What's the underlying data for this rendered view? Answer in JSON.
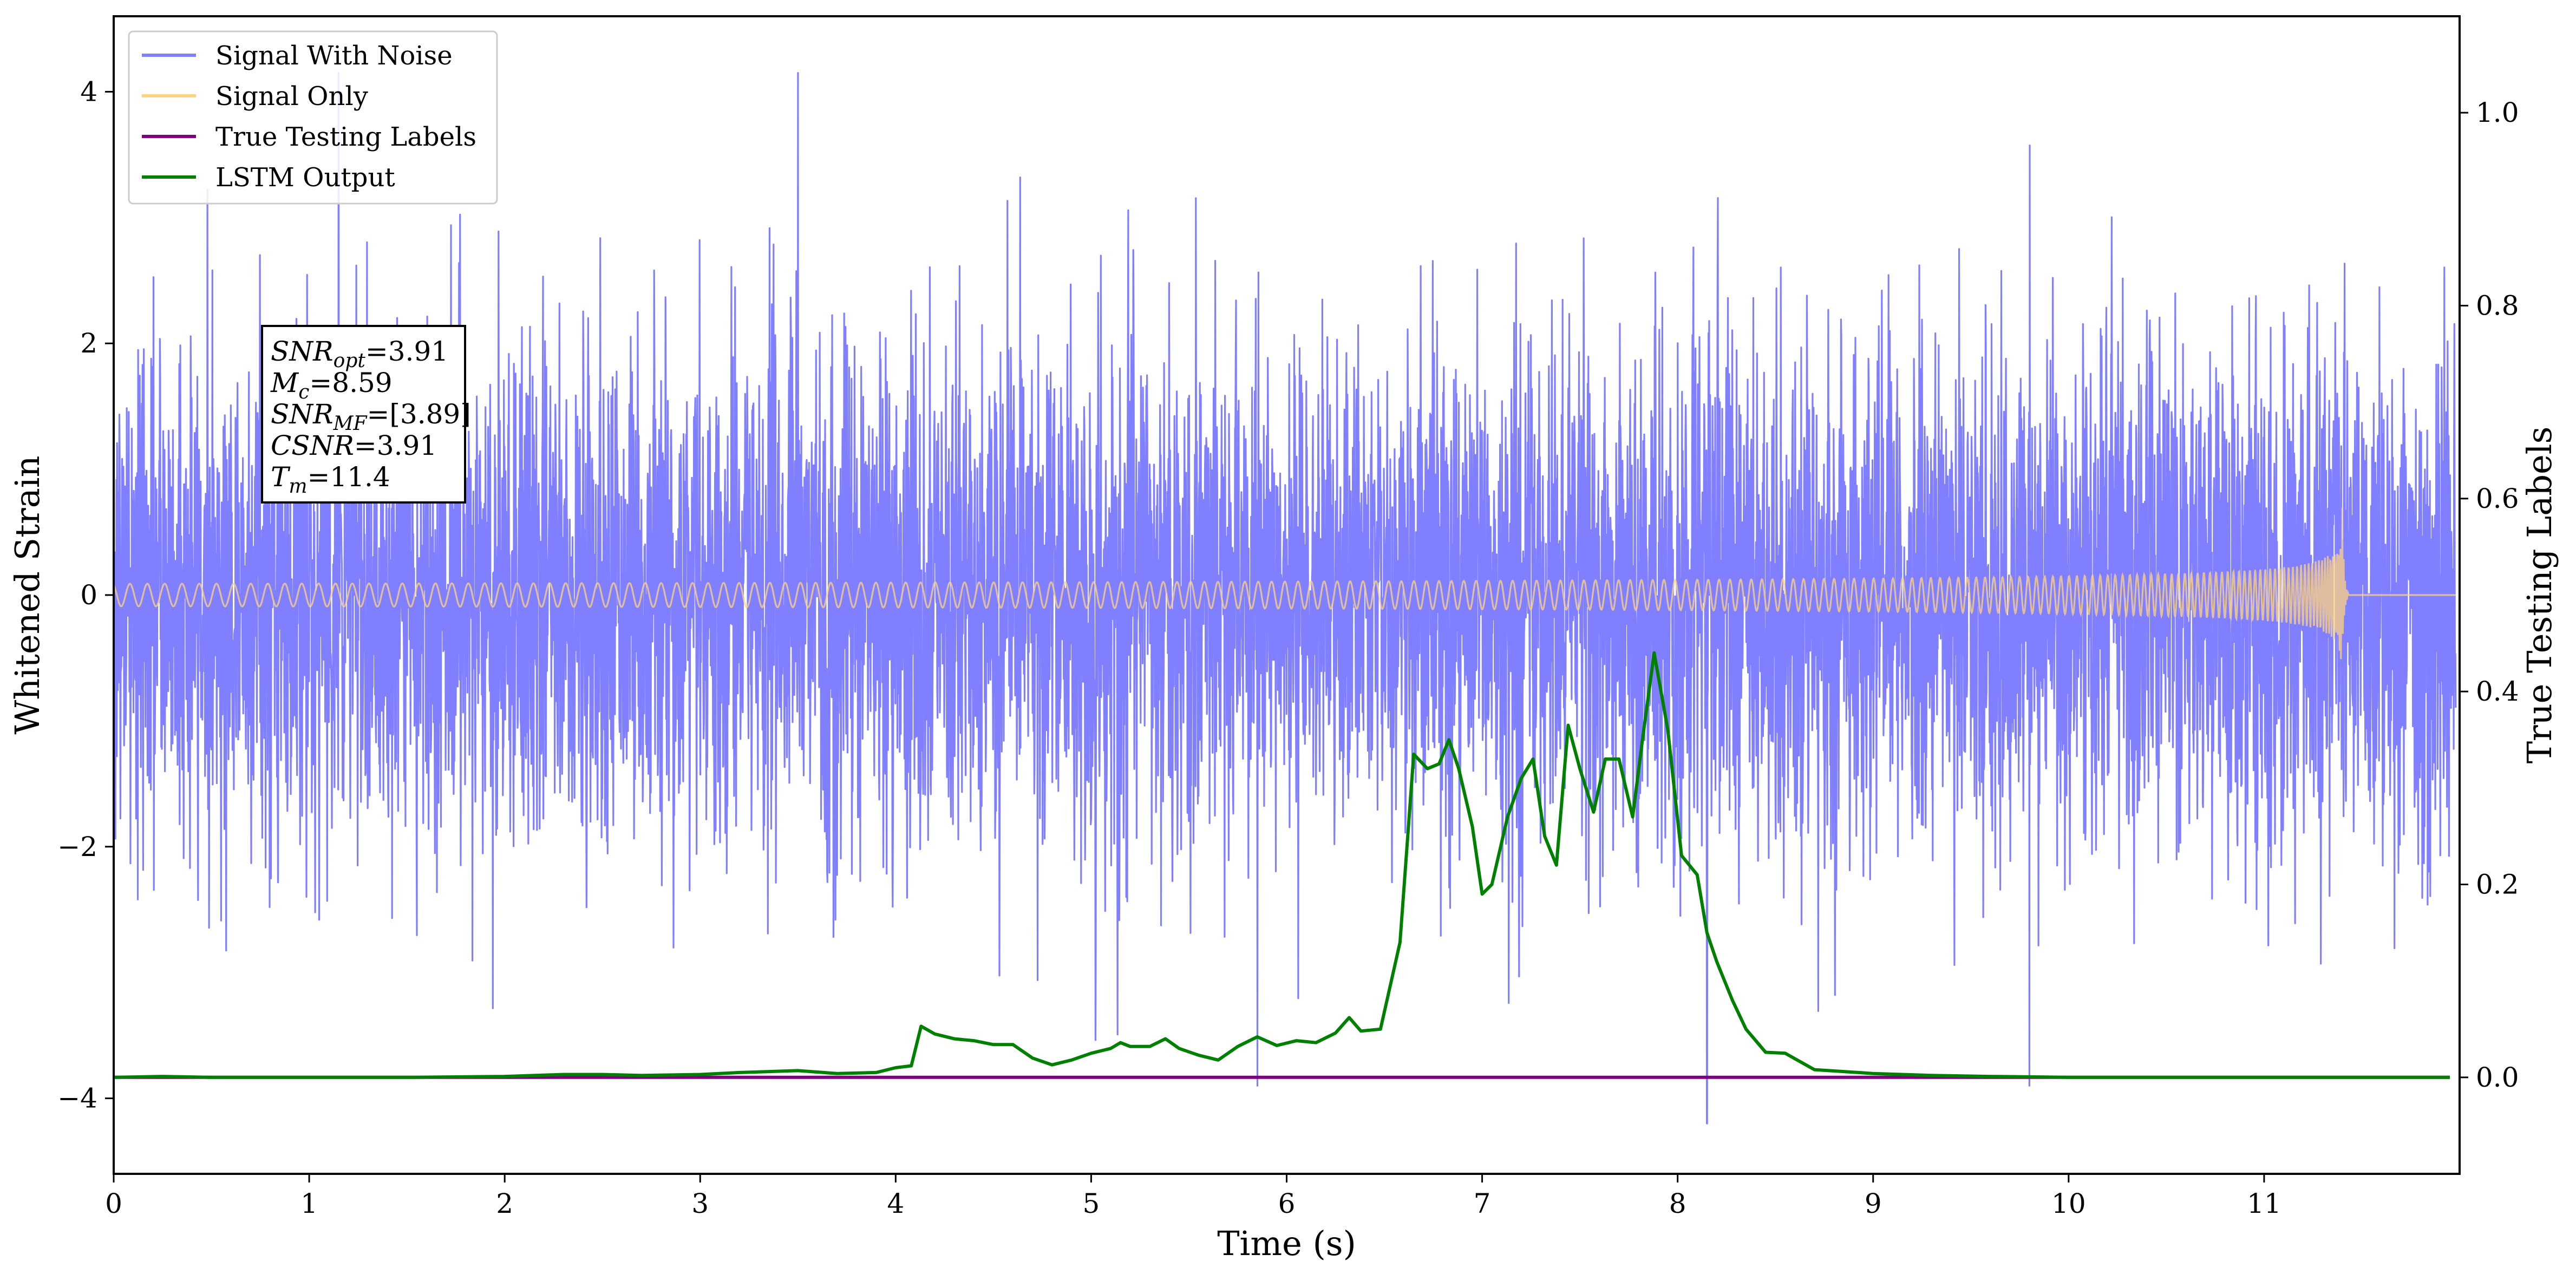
{
  "chart_data": {
    "type": "line",
    "xlabel": "Time (s)",
    "ylabel": "Whitened Strain",
    "y2label": "True Testing Labels",
    "xlim": [
      0,
      12
    ],
    "ylim": [
      -4.6,
      4.6
    ],
    "y2lim": [
      -0.1,
      1.1
    ],
    "grid": false,
    "legend_position": "top-left",
    "x_ticks": [
      0,
      1,
      2,
      3,
      4,
      5,
      6,
      7,
      8,
      9,
      10,
      11
    ],
    "x_tick_labels": [
      "0",
      "1",
      "2",
      "3",
      "4",
      "5",
      "6",
      "7",
      "8",
      "9",
      "10",
      "11"
    ],
    "y_ticks": [
      -4,
      -2,
      0,
      2,
      4
    ],
    "y_tick_labels": [
      "−4",
      "−2",
      "0",
      "2",
      "4"
    ],
    "y2_ticks": [
      0.0,
      0.2,
      0.4,
      0.6,
      0.8,
      1.0
    ],
    "y2_tick_labels": [
      "0.0",
      "0.2",
      "0.4",
      "0.6",
      "0.8",
      "1.0"
    ],
    "legend": [
      {
        "name": "Signal With Noise",
        "color": "#7f7fff"
      },
      {
        "name": "Signal Only",
        "color": "#ffd27f"
      },
      {
        "name": "True Testing Labels",
        "color": "#800080"
      },
      {
        "name": "LSTM Output",
        "color": "#008000"
      }
    ],
    "annotation": [
      {
        "base": "SNR",
        "sub": "opt",
        "value": "=3.91"
      },
      {
        "base": "M",
        "sub": "c",
        "value": "=8.59"
      },
      {
        "base": "SNR",
        "sub": "MF",
        "value": "=[3.89]"
      },
      {
        "base": "CSNR",
        "sub": "",
        "value": "=3.91"
      },
      {
        "base": "T",
        "sub": "m",
        "value": "=11.4"
      }
    ],
    "series": [
      {
        "name": "Signal With Noise",
        "axis": "left",
        "color": "#7f7fff",
        "noise_std": 1.0,
        "approx_range": [
          -4.2,
          4.2
        ],
        "notable_peaks": {
          "x": [
            1.15,
            3.5,
            8.15,
            5.85,
            9.8
          ],
          "y": [
            4.15,
            4.15,
            -4.2,
            -3.9,
            -3.9
          ]
        }
      },
      {
        "name": "Signal Only",
        "axis": "left",
        "color": "#ffd27f",
        "merger_time": 11.4,
        "peak_amplitude": 0.7
      },
      {
        "name": "True Testing Labels",
        "axis": "right",
        "color": "#800080",
        "x": [
          0,
          11.95
        ],
        "y": [
          0,
          0
        ]
      },
      {
        "name": "LSTM Output",
        "axis": "right",
        "color": "#008000",
        "x": [
          0,
          0.25,
          0.5,
          1,
          1.5,
          2,
          2.3,
          2.5,
          2.7,
          3,
          3.2,
          3.5,
          3.7,
          3.9,
          4.0,
          4.08,
          4.13,
          4.2,
          4.3,
          4.4,
          4.5,
          4.6,
          4.7,
          4.8,
          4.9,
          5.0,
          5.1,
          5.15,
          5.2,
          5.3,
          5.38,
          5.45,
          5.55,
          5.65,
          5.75,
          5.85,
          5.95,
          6.05,
          6.15,
          6.25,
          6.32,
          6.38,
          6.48,
          6.58,
          6.65,
          6.72,
          6.78,
          6.83,
          6.88,
          6.95,
          7.0,
          7.05,
          7.13,
          7.2,
          7.26,
          7.32,
          7.38,
          7.44,
          7.5,
          7.57,
          7.63,
          7.7,
          7.77,
          7.82,
          7.88,
          7.95,
          8.02,
          8.1,
          8.15,
          8.2,
          8.28,
          8.35,
          8.45,
          8.55,
          8.7,
          8.85,
          9.0,
          9.3,
          9.6,
          10,
          10.5,
          11,
          11.5,
          11.95
        ],
        "y": [
          0.0,
          0.001,
          0.0,
          0.0,
          0.0,
          0.001,
          0.003,
          0.003,
          0.002,
          0.003,
          0.005,
          0.007,
          0.004,
          0.005,
          0.01,
          0.012,
          0.053,
          0.045,
          0.04,
          0.038,
          0.034,
          0.034,
          0.02,
          0.013,
          0.018,
          0.025,
          0.03,
          0.036,
          0.032,
          0.032,
          0.04,
          0.03,
          0.023,
          0.018,
          0.032,
          0.042,
          0.033,
          0.038,
          0.036,
          0.046,
          0.062,
          0.048,
          0.05,
          0.14,
          0.335,
          0.32,
          0.325,
          0.35,
          0.32,
          0.26,
          0.19,
          0.2,
          0.27,
          0.31,
          0.33,
          0.25,
          0.22,
          0.365,
          0.32,
          0.275,
          0.33,
          0.33,
          0.27,
          0.35,
          0.44,
          0.36,
          0.23,
          0.21,
          0.15,
          0.12,
          0.08,
          0.05,
          0.026,
          0.025,
          0.008,
          0.006,
          0.004,
          0.002,
          0.001,
          0.0,
          0.0,
          0.0,
          0.0,
          0.0
        ]
      }
    ]
  }
}
